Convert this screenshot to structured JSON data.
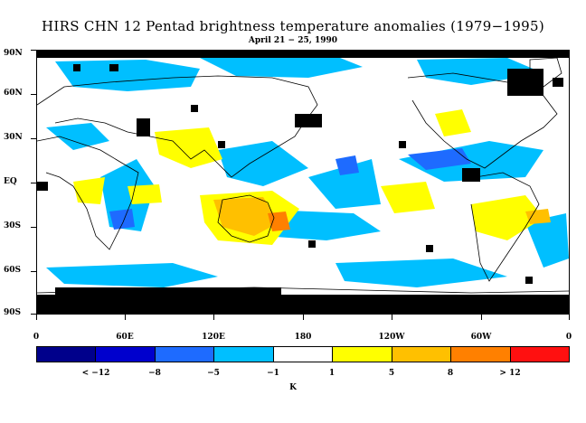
{
  "title": "HIRS CHN 12 Pentad brightness temperature anomalies (1979−1995)",
  "subtitle": "April 21 − 25, 1990",
  "lat_labels": [
    "90N",
    "60N",
    "30N",
    "EQ",
    "30S",
    "60S",
    "90S"
  ],
  "lon_labels": [
    "0",
    "60E",
    "120E",
    "180",
    "120W",
    "60W",
    "0"
  ],
  "colorbar": {
    "colors": [
      "#00008b",
      "#0000cd",
      "#1e6bff",
      "#00bfff",
      "#ffffff",
      "#ffff00",
      "#ffc000",
      "#ff8000",
      "#ff1010"
    ],
    "labels": [
      "< −12",
      "−8",
      "−5",
      "−1",
      "1",
      "5",
      "8",
      "> 12"
    ],
    "unit": "K"
  },
  "missing_color": "#000000",
  "coastline_color": "#000000"
}
